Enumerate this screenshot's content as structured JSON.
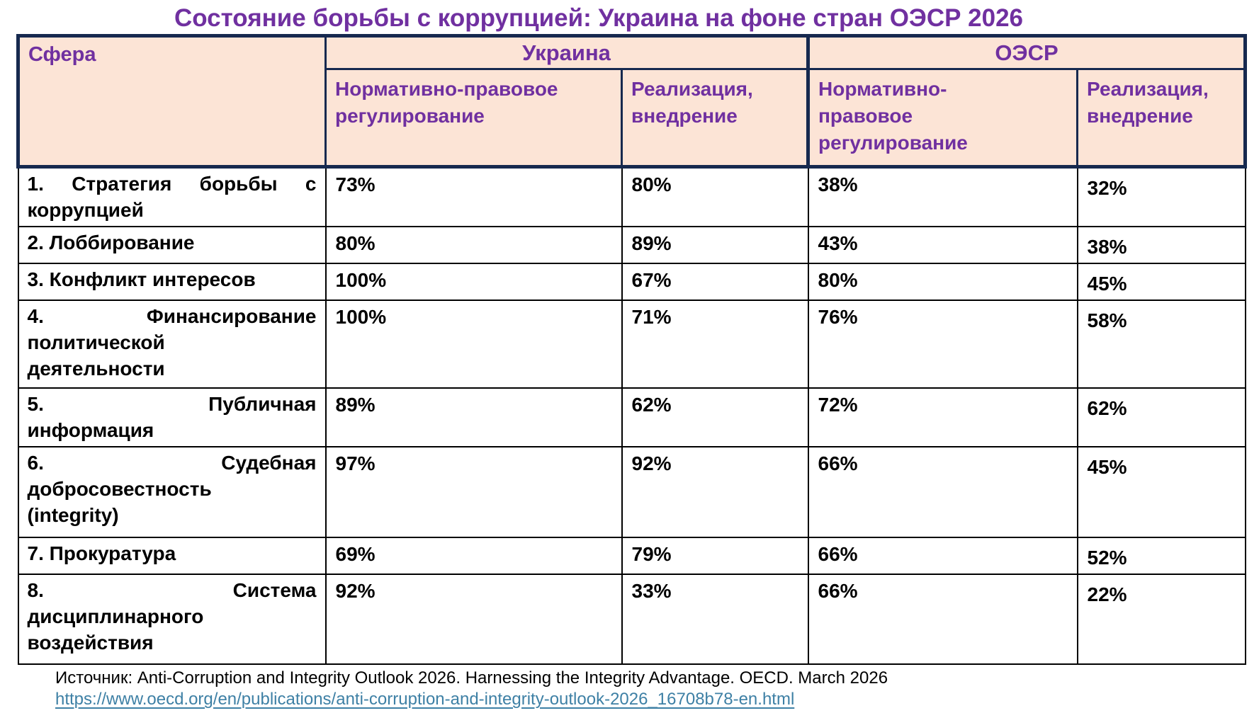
{
  "title": "Состояние борьбы с коррупцией: Украина на фоне стран ОЭСР 2026",
  "colors": {
    "accent_purple": "#7030A0",
    "border_navy": "#16294F",
    "header_peach": "#FCE4D6",
    "body_text": "#000000",
    "link_teal": "#3E80A5",
    "background": "#FFFFFF"
  },
  "table": {
    "corner_header": "Сфера",
    "group_ukraine": "Украина",
    "group_oecd": "ОЭСР",
    "subheaders": {
      "ua_regulation": "Нормативно-правовое\nрегулирование",
      "ua_implementation": "Реализация,\nвнедрение",
      "oecd_regulation": "Нормативно-\nправовое\nрегулирование",
      "oecd_implementation": "Реализация,\nвнедрение"
    },
    "rows": [
      {
        "sphere": "1. Стратегия борьбы с\nкоррупцией",
        "ua_regulation": "73%",
        "ua_implementation": "80%",
        "oecd_regulation": "38%",
        "oecd_implementation": "32%"
      },
      {
        "sphere": "2. Лоббирование",
        "ua_regulation": "80%",
        "ua_implementation": "89%",
        "oecd_regulation": "43%",
        "oecd_implementation": "38%"
      },
      {
        "sphere": "3. Конфликт интересов",
        "ua_regulation": "100%",
        "ua_implementation": "67%",
        "oecd_regulation": "80%",
        "oecd_implementation": "45%"
      },
      {
        "sphere": "4. Финансирование\nполитической\nдеятельности",
        "ua_regulation": "100%",
        "ua_implementation": "71%",
        "oecd_regulation": "76%",
        "oecd_implementation": "58%"
      },
      {
        "sphere": "5. Публичная\nинформация",
        "ua_regulation": "89%",
        "ua_implementation": "62%",
        "oecd_regulation": "72%",
        "oecd_implementation": "62%"
      },
      {
        "sphere": "6. Судебная\nдобросовестность\n(integrity)",
        "ua_regulation": "97%",
        "ua_implementation": "92%",
        "oecd_regulation": "66%",
        "oecd_implementation": "45%"
      },
      {
        "sphere": "7. Прокуратура",
        "ua_regulation": "69%",
        "ua_implementation": "79%",
        "oecd_regulation": "66%",
        "oecd_implementation": "52%"
      },
      {
        "sphere": "8. Система\nдисциплинарного\nвоздействия",
        "ua_regulation": "92%",
        "ua_implementation": "33%",
        "oecd_regulation": "66%",
        "oecd_implementation": "22%"
      }
    ]
  },
  "footer": {
    "source": "Источник: Anti-Corruption and Integrity Outlook 2026. Harnessing the Integrity Advantage. OECD. March 2026",
    "link": "https://www.oecd.org/en/publications/anti-corruption-and-integrity-outlook-2026_16708b78-en.html"
  }
}
